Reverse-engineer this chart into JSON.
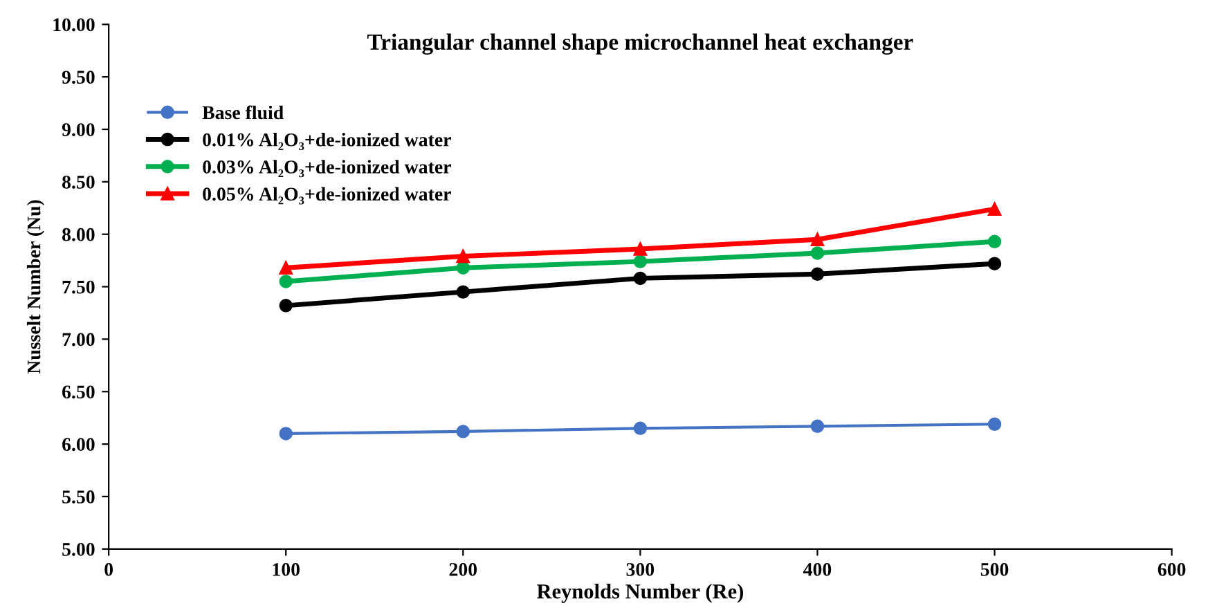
{
  "chart_data": {
    "type": "line",
    "title": "Triangular channel shape microchannel heat exchanger",
    "xlabel": "Reynolds Number (Re)",
    "ylabel": "Nusselt Number (Nu)",
    "x": [
      100,
      200,
      300,
      400,
      500
    ],
    "series": [
      {
        "name": "Base fluid",
        "color": "#4472c4",
        "marker": "circle",
        "values": [
          6.1,
          6.12,
          6.15,
          6.17,
          6.19
        ]
      },
      {
        "name": "0.01% Al₂O₃+de-ionized water",
        "color": "#000000",
        "marker": "circle",
        "values": [
          7.32,
          7.45,
          7.58,
          7.62,
          7.72
        ]
      },
      {
        "name": "0.03% Al₂O₃+de-ionized water",
        "color": "#00b050",
        "marker": "circle",
        "values": [
          7.55,
          7.68,
          7.74,
          7.82,
          7.93
        ]
      },
      {
        "name": "0.05% Al₂O₃+de-ionized water",
        "color": "#ff0000",
        "marker": "triangle",
        "values": [
          7.68,
          7.79,
          7.86,
          7.95,
          8.24
        ]
      }
    ],
    "xlim": [
      0,
      600
    ],
    "xticks": [
      0,
      100,
      200,
      300,
      400,
      500,
      600
    ],
    "ylim": [
      5,
      10
    ],
    "yticks": [
      {
        "value": 5,
        "label": "5.00"
      },
      {
        "value": 5.5,
        "label": "5.50"
      },
      {
        "value": 6,
        "label": "6.00"
      },
      {
        "value": 6.5,
        "label": "6.50"
      },
      {
        "value": 7,
        "label": "7.00"
      },
      {
        "value": 7.5,
        "label": "7.50"
      },
      {
        "value": 8,
        "label": "8.00"
      },
      {
        "value": 8.5,
        "label": "8.50"
      },
      {
        "value": 9,
        "label": "9.00"
      },
      {
        "value": 9.5,
        "label": "9.50"
      },
      {
        "value": 10,
        "label": "10.00"
      }
    ],
    "grid": false,
    "legend": "top left",
    "line_style": "solid"
  }
}
